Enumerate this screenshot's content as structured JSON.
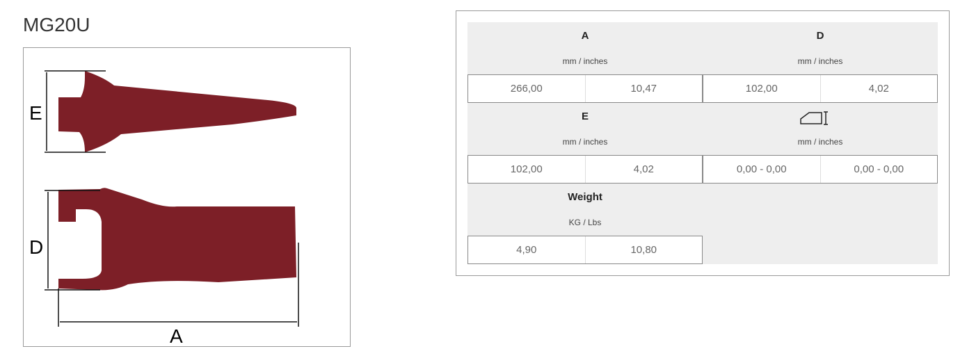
{
  "product": {
    "title": "MG20U",
    "dimension_labels": {
      "e": "E",
      "d": "D",
      "a": "A"
    },
    "colors": {
      "tooth": "#7d1f27"
    }
  },
  "specs": [
    {
      "label": "A",
      "unit": "mm / inches",
      "values": [
        "266,00",
        "10,47"
      ]
    },
    {
      "label": "D",
      "unit": "mm / inches",
      "values": [
        "102,00",
        "4,02"
      ]
    },
    {
      "label": "E",
      "unit": "mm / inches",
      "values": [
        "102,00",
        "4,02"
      ]
    },
    {
      "label": "",
      "icon": "tooth-profile-icon",
      "unit": "mm / inches",
      "values": [
        "0,00 - 0,00",
        "0,00 - 0,00"
      ]
    },
    {
      "label": "Weight",
      "unit": "KG / Lbs",
      "values": [
        "4,90",
        "10,80"
      ]
    }
  ]
}
